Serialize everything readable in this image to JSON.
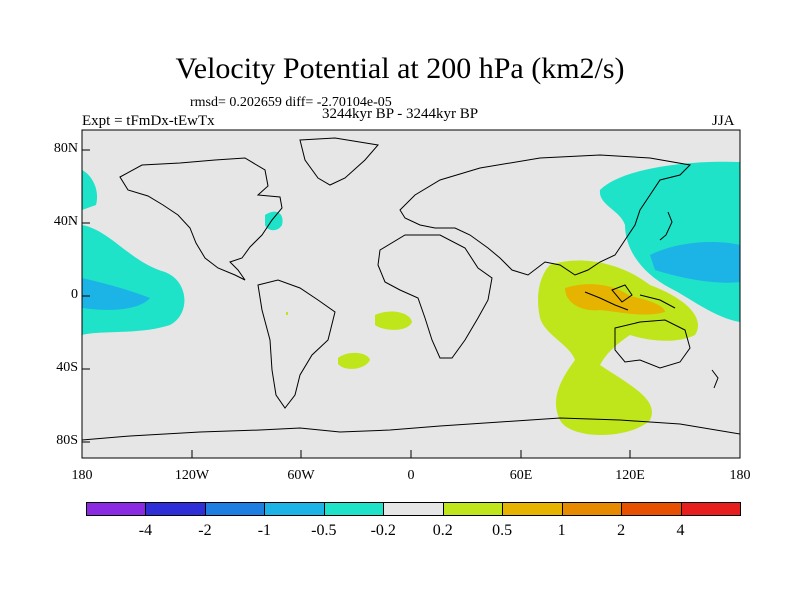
{
  "header": {
    "title": "Velocity Potential at 200 hPa (km2/s)",
    "stats": "rmsd= 0.202659 diff= -2.70104e-05",
    "experiment": "Expt = tFmDx-tEwTx",
    "period": "3244kyr BP - 3244kyr BP",
    "season": "JJA"
  },
  "map": {
    "lon_range": [
      -180,
      180
    ],
    "lat_range": [
      -90,
      90
    ],
    "background_color": "#e6e6e6",
    "y_ticks": [
      "80N",
      "40N",
      "0",
      "40S",
      "80S"
    ],
    "x_ticks": [
      "180",
      "120W",
      "60W",
      "0",
      "60E",
      "120E",
      "180"
    ]
  },
  "legend": {
    "colors": [
      "#8a2be2",
      "#2f2fd8",
      "#1e7fe0",
      "#1cb4e6",
      "#1ee3c8",
      "#e6e6e6",
      "#bfe61a",
      "#e6b400",
      "#e68a00",
      "#e65000",
      "#e61e1e"
    ],
    "labels": [
      "-4",
      "-2",
      "-1",
      "-0.5",
      "-0.2",
      "0.2",
      "0.5",
      "1",
      "2",
      "4"
    ]
  }
}
